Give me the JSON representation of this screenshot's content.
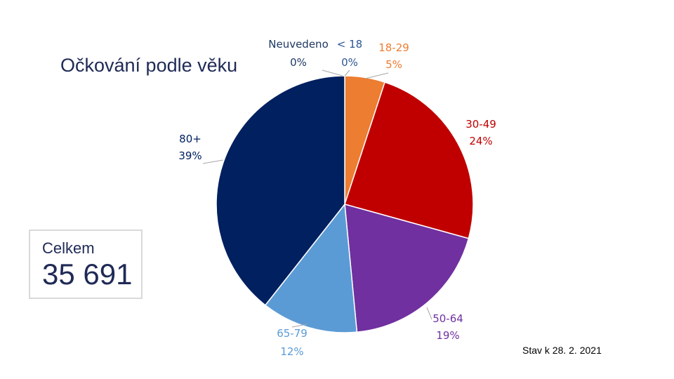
{
  "title": "Očkování podle věku",
  "total": {
    "label": "Celkem",
    "value": "35 691"
  },
  "as_of": "Stav k 28. 2. 2021",
  "chart_data": {
    "type": "pie",
    "slices": [
      {
        "name": "Neuvedeno",
        "value": 0,
        "label": "0%",
        "color": "#002060"
      },
      {
        "name": "< 18",
        "value": 0,
        "label": "0%",
        "color": "#2e5597"
      },
      {
        "name": "18-29",
        "value": 5,
        "label": "5%",
        "color": "#ed7d31"
      },
      {
        "name": "30-49",
        "value": 24,
        "label": "24%",
        "color": "#c00000"
      },
      {
        "name": "50-64",
        "value": 19,
        "label": "19%",
        "color": "#7030a0"
      },
      {
        "name": "65-79",
        "value": 12,
        "label": "12%",
        "color": "#5b9bd5"
      },
      {
        "name": "80+",
        "value": 39,
        "label": "39%",
        "color": "#002060"
      }
    ],
    "start": "12 o'clock",
    "direction": "clockwise",
    "legend": "none"
  }
}
